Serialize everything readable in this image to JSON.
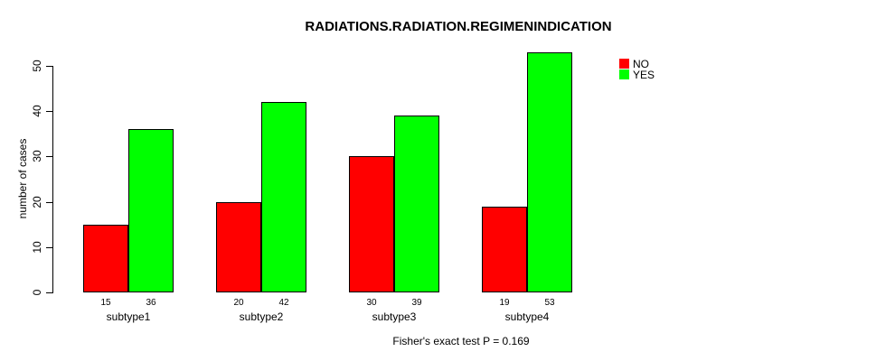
{
  "chart_data": {
    "type": "bar",
    "title": "RADIATIONS.RADIATION.REGIMENINDICATION",
    "ylabel": "number of cases",
    "xlabel": "",
    "categories": [
      "subtype1",
      "subtype2",
      "subtype3",
      "subtype4"
    ],
    "series": [
      {
        "name": "NO",
        "color": "#FF0000",
        "values": [
          15,
          20,
          30,
          19
        ]
      },
      {
        "name": "YES",
        "color": "#00FF00",
        "values": [
          36,
          42,
          39,
          53
        ]
      }
    ],
    "yticks": [
      0,
      10,
      20,
      30,
      40,
      50
    ],
    "ylim": [
      0,
      53
    ],
    "grid": false,
    "bar_value_labels": true,
    "legend_position": "top-right",
    "annotation": "Fisher's exact test P = 0.169"
  },
  "colors": {
    "background": "#FFFFFF",
    "axis": "#000000",
    "bar_border": "#000000",
    "no": "#FF0000",
    "yes": "#00FF00"
  }
}
